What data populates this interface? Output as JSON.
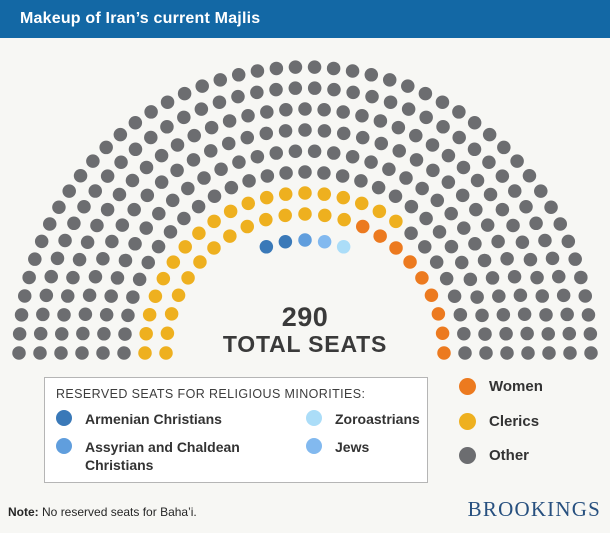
{
  "header": {
    "title": "Makeup of Iran’s current Majlis"
  },
  "chart_data": {
    "type": "parliament",
    "title": "Makeup of Iran’s current Majlis",
    "total_seats": 290,
    "center_label": {
      "value": "290",
      "caption": "TOTAL SEATS"
    },
    "legend_position": "right and below",
    "palette": {
      "women": "#EC7A1F",
      "clerics": "#EEB01F",
      "other": "#6C6D70",
      "armenian": "#3A79B8",
      "assyrian": "#609EDD",
      "jews": "#82B9EF",
      "zoroastrians": "#ABDDF8"
    },
    "totals": {
      "women": 9,
      "clerics": 33,
      "armenian_christians": 2,
      "assyrian_and_chaldean_christians": 1,
      "jews": 1,
      "zoroastrians": 1,
      "other": 243
    },
    "rows_note": "rows listed innermost to outermost; segments run left to right across the hemicycle",
    "rows": [
      {
        "radius": 113,
        "arc": [
          110,
          70
        ],
        "segments": [
          [
            "armenian",
            2
          ],
          [
            "assyrian",
            1
          ],
          [
            "jews",
            1
          ],
          [
            "zoroastrians",
            1
          ]
        ]
      },
      {
        "radius": 139,
        "arc": [
          180,
          0
        ],
        "segments": [
          [
            "clerics",
            14
          ],
          [
            "women",
            9
          ]
        ]
      },
      {
        "radius": 160,
        "arc": [
          180,
          0
        ],
        "segments": [
          [
            "clerics",
            19
          ],
          [
            "other",
            8
          ]
        ]
      },
      {
        "radius": 181,
        "arc": [
          180,
          0
        ],
        "segments": [
          [
            "other",
            31
          ]
        ]
      },
      {
        "radius": 202,
        "arc": [
          180,
          0
        ],
        "segments": [
          [
            "other",
            34
          ]
        ]
      },
      {
        "radius": 223,
        "arc": [
          180,
          0
        ],
        "segments": [
          [
            "other",
            37
          ]
        ]
      },
      {
        "radius": 244,
        "arc": [
          180,
          0
        ],
        "segments": [
          [
            "other",
            41
          ]
        ]
      },
      {
        "radius": 265,
        "arc": [
          180,
          0
        ],
        "segments": [
          [
            "other",
            44
          ]
        ]
      },
      {
        "radius": 286,
        "arc": [
          180,
          0
        ],
        "segments": [
          [
            "other",
            48
          ]
        ]
      }
    ]
  },
  "reserved_legend": {
    "title": "RESERVED SEATS FOR RELIGIOUS MINORITIES:",
    "items": [
      {
        "key": "armenian",
        "label": "Armenian Christians"
      },
      {
        "key": "zoroastrians",
        "label": "Zoroastrians"
      },
      {
        "key": "assyrian",
        "label": "Assyrian and Chaldean Christians"
      },
      {
        "key": "jews",
        "label": "Jews"
      }
    ]
  },
  "main_legend": {
    "items": [
      {
        "key": "women",
        "label": "Women"
      },
      {
        "key": "clerics",
        "label": "Clerics"
      },
      {
        "key": "other",
        "label": "Other"
      }
    ]
  },
  "footer": {
    "note_label": "Note:",
    "note_text": "No reserved seats for Baha’i.",
    "brand": "BROOKINGS"
  }
}
